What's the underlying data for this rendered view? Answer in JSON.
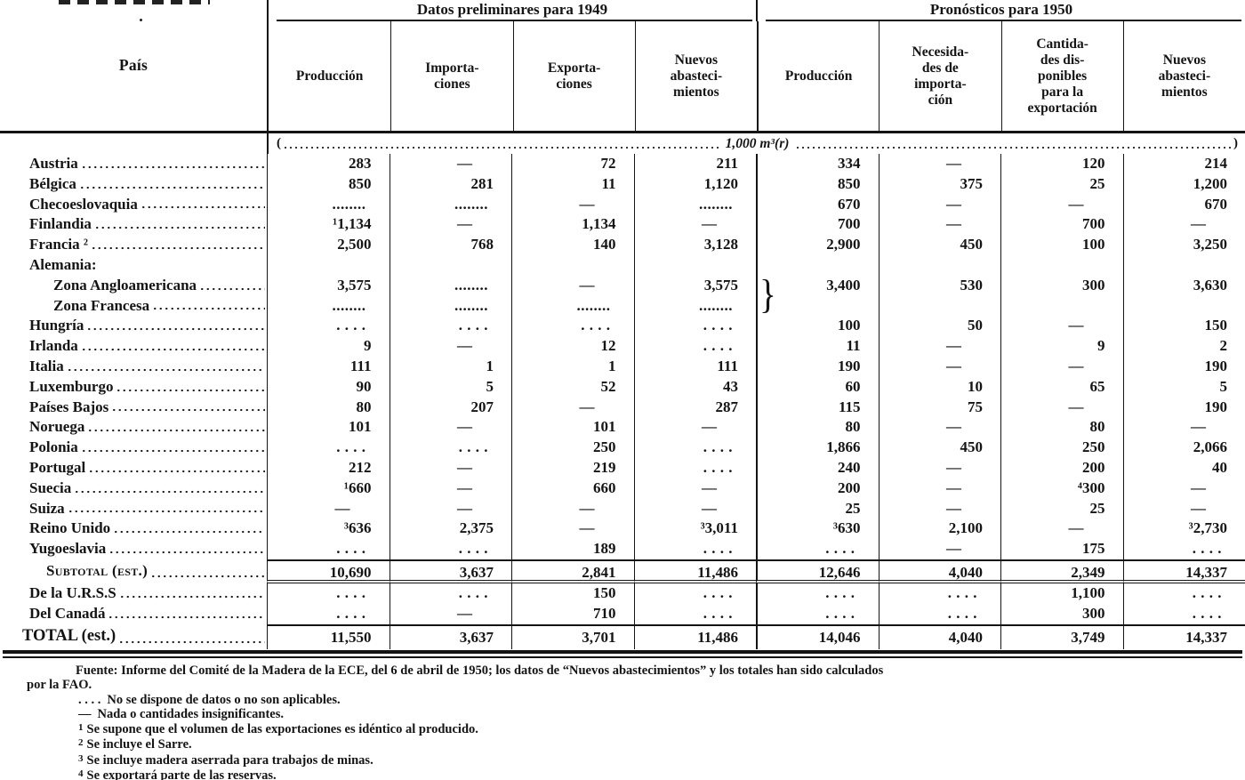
{
  "table": {
    "country_header": "País",
    "groups": [
      {
        "label": "Datos preliminares para 1949"
      },
      {
        "label": "Pronósticos para 1950"
      }
    ],
    "columns": [
      {
        "label": "Producción"
      },
      {
        "label": "Importa-\nciones"
      },
      {
        "label": "Exporta-\nciones"
      },
      {
        "label": "Nuevos\nabasteci-\nmientos"
      },
      {
        "label": "Producción"
      },
      {
        "label": "Necesida-\ndes de\nimporta-\nción"
      },
      {
        "label": "Cantida-\ndes dis-\nponibles\npara la\nexportación"
      },
      {
        "label": "Nuevos\nabasteci-\nmientos"
      }
    ],
    "unit": {
      "open": "(",
      "label": "1,000 m³(r)",
      "close": ")"
    },
    "germany_brace": "}",
    "rows": [
      {
        "name": "Austria",
        "cells": [
          "283",
          "—",
          "72",
          "211",
          "334",
          "—",
          "120",
          "214"
        ]
      },
      {
        "name": "Bélgica",
        "cells": [
          "850",
          "281",
          "11",
          "1,120",
          "850",
          "375",
          "25",
          "1,200"
        ]
      },
      {
        "name": "Checoeslovaquia",
        "cells": [
          "........",
          "........",
          "—",
          "........",
          "670",
          "—",
          "—",
          "670"
        ]
      },
      {
        "name": "Finlandia",
        "cells": [
          "¹1,134",
          "—",
          "1,134",
          "—",
          "700",
          "—",
          "700",
          "—"
        ]
      },
      {
        "name": "Francia ²",
        "cells": [
          "2,500",
          "768",
          "140",
          "3,128",
          "2,900",
          "450",
          "100",
          "3,250"
        ]
      },
      {
        "name": "Alemania:",
        "type": "label",
        "leader": false,
        "cells": [
          "",
          "",
          "",
          "",
          "",
          "",
          "",
          ""
        ]
      },
      {
        "name": "Zona Angloamericana",
        "indent": 1,
        "cells": [
          "3,575",
          "........",
          "—",
          "3,575",
          "3,400",
          "530",
          "300",
          "3,630"
        ]
      },
      {
        "name": "Zona Francesa",
        "indent": 1,
        "cells": [
          "........",
          "........",
          "........",
          "........",
          "",
          "",
          "",
          ""
        ]
      },
      {
        "name": "Hungría",
        "cells": [
          ". . . .",
          ". . . .",
          ". . . .",
          ". . . .",
          "100",
          "50",
          "—",
          "150"
        ]
      },
      {
        "name": "Irlanda",
        "cells": [
          "9",
          "—",
          "12",
          ". . . .",
          "11",
          "—",
          "9",
          "2"
        ]
      },
      {
        "name": "Italia",
        "cells": [
          "111",
          "1",
          "1",
          "111",
          "190",
          "—",
          "—",
          "190"
        ]
      },
      {
        "name": "Luxemburgo",
        "cells": [
          "90",
          "5",
          "52",
          "43",
          "60",
          "10",
          "65",
          "5"
        ]
      },
      {
        "name": "Países Bajos",
        "cells": [
          "80",
          "207",
          "—",
          "287",
          "115",
          "75",
          "—",
          "190"
        ]
      },
      {
        "name": "Noruega",
        "cells": [
          "101",
          "—",
          "101",
          "—",
          "80",
          "—",
          "80",
          "—"
        ]
      },
      {
        "name": "Polonia",
        "cells": [
          ". . . .",
          ". . . .",
          "250",
          ". . . .",
          "1,866",
          "450",
          "250",
          "2,066"
        ]
      },
      {
        "name": "Portugal",
        "cells": [
          "212",
          "—",
          "219",
          ". . . .",
          "240",
          "—",
          "200",
          "40"
        ]
      },
      {
        "name": "Suecia",
        "cells": [
          "¹660",
          "—",
          "660",
          "—",
          "200",
          "—",
          "⁴300",
          "—"
        ]
      },
      {
        "name": "Suiza",
        "cells": [
          "—",
          "—",
          "—",
          "—",
          "25",
          "—",
          "25",
          "—"
        ]
      },
      {
        "name": "Reino Unido",
        "cells": [
          "³636",
          "2,375",
          "—",
          "³3,011",
          "³630",
          "2,100",
          "—",
          "³2,730"
        ]
      },
      {
        "name": "Yugoeslavia",
        "cells": [
          ". . . .",
          ". . . .",
          "189",
          ". . . .",
          ". . . .",
          "—",
          "175",
          ". . . ."
        ]
      },
      {
        "name": "Subtotal (est.)",
        "type": "subtotal",
        "cells": [
          "10,690",
          "3,637",
          "2,841",
          "11,486",
          "12,646",
          "4,040",
          "2,349",
          "14,337"
        ]
      },
      {
        "name": "De la U.R.S.S",
        "cells": [
          ". . . .",
          ". . . .",
          "150",
          ". . . .",
          ". . . .",
          ". . . .",
          "1,100",
          ". . . ."
        ]
      },
      {
        "name": "Del Canadá",
        "cells": [
          ". . . .",
          "—",
          "710",
          ". . . .",
          ". . . .",
          ". . . .",
          "300",
          ". . . ."
        ]
      },
      {
        "name": "TOTAL (est.)",
        "type": "total",
        "cells": [
          "11,550",
          "3,637",
          "3,701",
          "11,486",
          "14,046",
          "4,040",
          "3,749",
          "14,337"
        ]
      }
    ]
  },
  "footnotes": {
    "fuente_line1": "Fuente:  Informe del Comité de la Madera de la ECE, del 6 de abril de 1950; los datos de “Nuevos abastecimientos” y los totales han sido calculados",
    "fuente_line2": "por la FAO.",
    "legend": [
      {
        "marker": ". . . .",
        "text": "No se dispone de datos o no son aplicables."
      },
      {
        "marker": "—",
        "text": "Nada o cantidades insignificantes."
      },
      {
        "marker": "1",
        "text": "Se supone que el volumen de las exportaciones es idéntico al producido."
      },
      {
        "marker": "2",
        "text": "Se incluye el Sarre."
      },
      {
        "marker": "3",
        "text": "Se incluye madera aserrada para trabajos de minas."
      },
      {
        "marker": "4",
        "text": "Se exportará parte de las reservas."
      }
    ]
  },
  "colors": {
    "ink": "#141414",
    "paper": "#ffffff"
  }
}
